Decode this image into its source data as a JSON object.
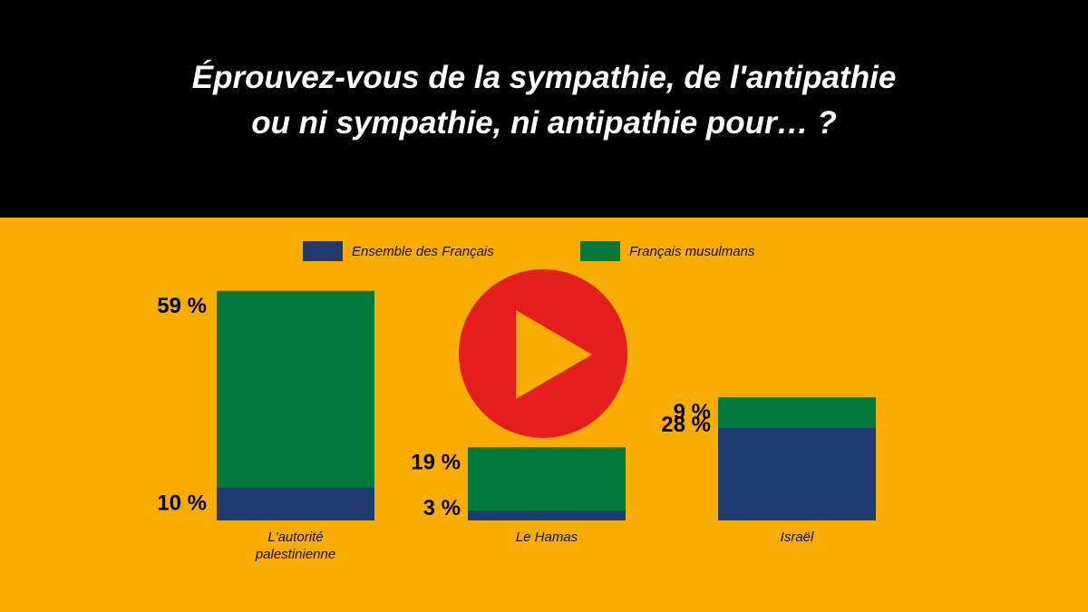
{
  "title": {
    "line1": "Éprouvez-vous de la sympathie, de l'antipathie",
    "line2": "ou ni sympathie, ni antipathie pour… ?"
  },
  "colors": {
    "background": "#f8ad00",
    "header": "#000000",
    "series_all": "#1f3a6e",
    "series_muslims": "#00793a",
    "play": "#e41e1b"
  },
  "icons": {
    "play": "play-icon"
  },
  "chart_data": {
    "type": "bar",
    "stacked": true,
    "categories": [
      "L'autorité palestinienne",
      "Le Hamas",
      "Israël"
    ],
    "category_lines": [
      [
        "L'autorité",
        "palestinienne"
      ],
      [
        "Le Hamas"
      ],
      [
        "Israël"
      ]
    ],
    "series": [
      {
        "name": "Ensemble des Français",
        "values": [
          10,
          3,
          28
        ],
        "labels": [
          "10 %",
          "3 %",
          "28 %"
        ]
      },
      {
        "name": "Français musulmans",
        "values": [
          59,
          19,
          9
        ],
        "labels": [
          "59 %",
          "19 %",
          "9 %"
        ]
      }
    ],
    "legend": "top"
  }
}
